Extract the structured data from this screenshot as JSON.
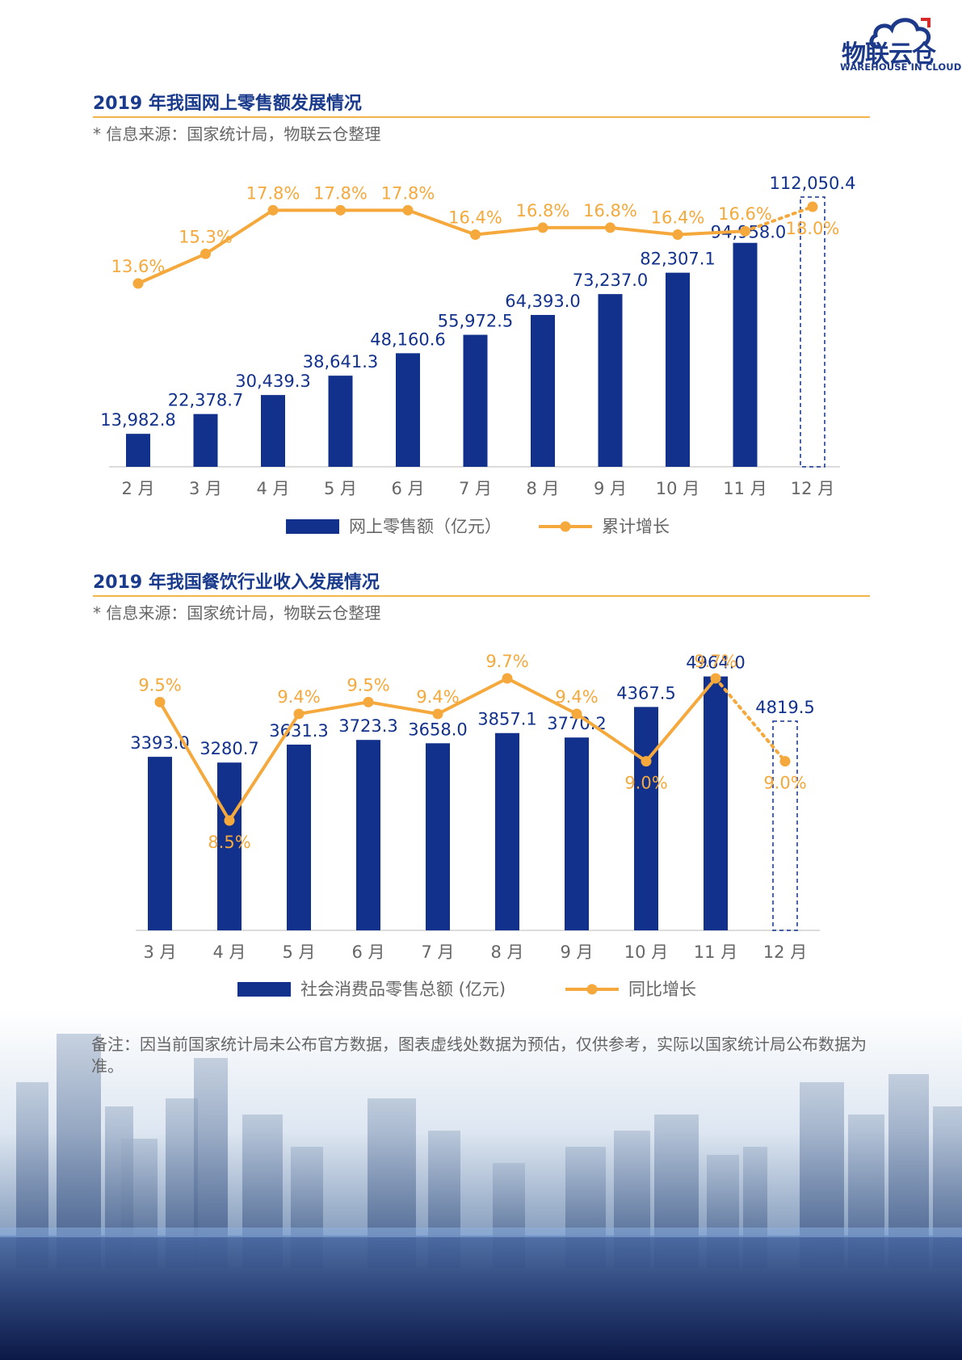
{
  "logo": {
    "name_cn": "物联云仓",
    "name_en": "WAREHOUSE IN CLOUD"
  },
  "section1": {
    "title": "2019 年我国网上零售额发展情况",
    "source": "* 信息来源：国家统计局，物联云仓整理"
  },
  "section2": {
    "title": "2019 年我国餐饮行业收入发展情况",
    "source": "* 信息来源：国家统计局，物联云仓整理"
  },
  "note": "备注：因当前国家统计局未公布官方数据，图表虚线处数据为预估，仅供参考，实际以国家统计局公布数据为准。",
  "colors": {
    "bar": "#12318c",
    "line": "#f5a93c",
    "title": "#1a3a8c",
    "rule": "#f3b44a",
    "axis_text": "#666666"
  },
  "chart_data": [
    {
      "type": "bar",
      "categories": [
        "2 月",
        "3 月",
        "4 月",
        "5 月",
        "6 月",
        "7 月",
        "8 月",
        "9 月",
        "10 月",
        "11 月",
        "12 月"
      ],
      "series": [
        {
          "name": "网上零售额（亿元）",
          "type": "bar",
          "values": [
            13982.8,
            22378.7,
            30439.3,
            38641.3,
            48160.6,
            55972.5,
            64393.0,
            73237.0,
            82307.1,
            94958.0,
            112050.4
          ],
          "labels": [
            "13,982.8",
            "22,378.7",
            "30,439.3",
            "38,641.3",
            "48,160.6",
            "55,972.5",
            "64,393.0",
            "73,237.0",
            "82,307.1",
            "94,958.0",
            "112,050.4"
          ],
          "estimated_last": true
        },
        {
          "name": "累计增长",
          "type": "line",
          "values": [
            13.6,
            15.3,
            17.8,
            17.8,
            17.8,
            16.4,
            16.8,
            16.8,
            16.4,
            16.6,
            18.0
          ],
          "labels": [
            "13.6%",
            "15.3%",
            "17.8%",
            "17.8%",
            "17.8%",
            "16.4%",
            "16.8%",
            "16.8%",
            "16.4%",
            "16.6%",
            "18.0%"
          ],
          "estimated_last": true
        }
      ],
      "legend_position": "bottom-center",
      "grid": false
    },
    {
      "type": "bar",
      "categories": [
        "3 月",
        "4 月",
        "5 月",
        "6 月",
        "7 月",
        "8 月",
        "9 月",
        "10 月",
        "11 月",
        "12 月"
      ],
      "series": [
        {
          "name": "社会消费品零售总额 (亿元)",
          "type": "bar",
          "values": [
            3393.0,
            3280.7,
            3631.3,
            3723.3,
            3658.0,
            3857.1,
            3770.2,
            4367.5,
            4964.0,
            4819.5
          ],
          "labels": [
            "3393.0",
            "3280.7",
            "3631.3",
            "3723.3",
            "3658.0",
            "3857.1",
            "3770.2",
            "4367.5",
            "4964.0",
            "4819.5"
          ],
          "estimated_last": true
        },
        {
          "name": "同比增长",
          "type": "line",
          "values": [
            9.5,
            8.5,
            9.4,
            9.5,
            9.4,
            9.7,
            9.4,
            9.0,
            9.7,
            9.0
          ],
          "labels": [
            "9.5%",
            "8.5%",
            "9.4%",
            "9.5%",
            "9.4%",
            "9.7%",
            "9.4%",
            "9.0%",
            "9.7%",
            "9.0%"
          ],
          "estimated_last": true
        }
      ],
      "legend_position": "bottom-center",
      "grid": false
    }
  ]
}
